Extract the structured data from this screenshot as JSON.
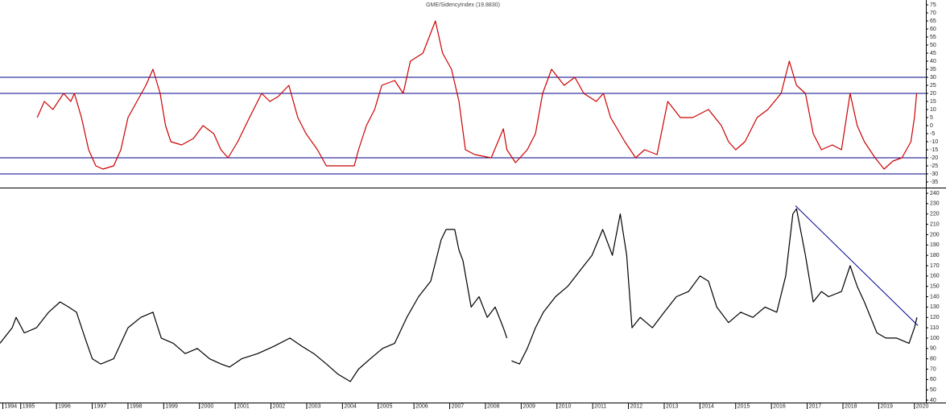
{
  "chart_data": [
    {
      "type": "line",
      "title": "GME/SidencyIndex (19.8830)",
      "xlim": [
        1994.42,
        2020.32
      ],
      "ylim": [
        -38.5,
        78
      ],
      "yticks": [
        75,
        70,
        65,
        60,
        55,
        50,
        45,
        40,
        35,
        30,
        25,
        20,
        15,
        10,
        5,
        0,
        -5,
        -10,
        -15,
        -20,
        -25,
        -30,
        -35
      ],
      "hlines": [
        30,
        20,
        -20,
        -30
      ],
      "hline_color": "#00008b",
      "x": [
        1995.46,
        1995.66,
        1995.9,
        1996.2,
        1996.4,
        1996.5,
        1996.7,
        1996.9,
        1997.1,
        1997.3,
        1997.6,
        1997.8,
        1998.0,
        1998.25,
        1998.5,
        1998.7,
        1998.9,
        1999.05,
        1999.2,
        1999.5,
        1999.83,
        2000.1,
        2000.4,
        2000.6,
        2000.8,
        2001.07,
        2001.4,
        2001.74,
        2001.97,
        2002.2,
        2002.5,
        2002.75,
        2002.98,
        2003.3,
        2003.55,
        2003.9,
        2004.33,
        2004.45,
        2004.67,
        2004.9,
        2005.1,
        2005.46,
        2005.7,
        2005.9,
        2006.25,
        2006.6,
        2006.8,
        2007.05,
        2007.26,
        2007.44,
        2007.7,
        2008.16,
        2008.5,
        2008.6,
        2008.84,
        2009.17,
        2009.4,
        2009.6,
        2009.85,
        2010.2,
        2010.5,
        2010.75,
        2011.1,
        2011.3,
        2011.5,
        2011.9,
        2012.2,
        2012.45,
        2012.8,
        2013.1,
        2013.45,
        2013.8,
        2014.24,
        2014.6,
        2014.8,
        2015.0,
        2015.26,
        2015.6,
        2015.9,
        2016.27,
        2016.5,
        2016.7,
        2016.95,
        2017.17,
        2017.4,
        2017.7,
        2017.96,
        2018.2,
        2018.4,
        2018.6,
        2018.9,
        2019.15,
        2019.4,
        2019.65,
        2019.9,
        2020.0,
        2020.06
      ],
      "series": [
        {
          "name": "GME/SidencyIndex",
          "color": "#cc0000",
          "values": [
            5,
            15,
            10,
            20,
            15,
            20,
            5,
            -15,
            -25,
            -27,
            -25,
            -15,
            5,
            15,
            25,
            35,
            20,
            0,
            -10,
            -12,
            -8,
            0,
            -5,
            -15,
            -20,
            -10,
            5,
            20,
            15,
            18,
            25,
            5,
            -5,
            -15,
            -25,
            -25,
            -25,
            -15,
            0,
            10,
            25,
            28,
            20,
            40,
            45,
            65,
            45,
            35,
            15,
            -15,
            -18,
            -20,
            -2,
            -15,
            -23,
            -15,
            -5,
            20,
            35,
            25,
            30,
            20,
            15,
            20,
            5,
            -10,
            -20,
            -15,
            -18,
            15,
            5,
            5,
            10,
            0,
            -10,
            -15,
            -10,
            5,
            10,
            20,
            40,
            25,
            20,
            -5,
            -15,
            -12,
            -15,
            20,
            0,
            -10,
            -20,
            -27,
            -22,
            -20,
            -10,
            5,
            19.8
          ]
        }
      ]
    },
    {
      "type": "line",
      "xlim": [
        1994.42,
        2020.32
      ],
      "ylim": [
        37.7,
        244.7
      ],
      "yticks": [
        240,
        230,
        220,
        210,
        200,
        190,
        180,
        170,
        160,
        150,
        140,
        130,
        120,
        110,
        100,
        90,
        80,
        70,
        60,
        50,
        40
      ],
      "xticks": [
        {
          "value": 1994.5,
          "label": "1994"
        },
        1995,
        1996,
        1997,
        1998,
        1999,
        2000,
        2001,
        2002,
        2003,
        2004,
        2005,
        2006,
        2007,
        2008,
        2009,
        2010,
        2011,
        2012,
        2013,
        2014,
        2015,
        2016,
        2017,
        2018,
        2019,
        2020
      ],
      "trendline": {
        "color": "#00008b",
        "x": [
          2016.67,
          2020.1
        ],
        "y": [
          228,
          112
        ]
      },
      "x": [
        1994.42,
        1994.76,
        1994.87,
        1995.1,
        1995.44,
        1995.78,
        1996.1,
        1996.34,
        1996.56,
        1996.8,
        1997.0,
        1997.24,
        1997.6,
        1997.8,
        1998.0,
        1998.36,
        1998.7,
        1998.93,
        1999.27,
        1999.6,
        1999.94,
        2000.28,
        2000.6,
        2000.84,
        2001.18,
        2001.63,
        2002.08,
        2002.53,
        2002.87,
        2003.2,
        2003.55,
        2003.88,
        2004.22,
        2004.45,
        2004.78,
        2005.12,
        2005.46,
        2005.8,
        2006.13,
        2006.47,
        2006.76,
        2006.9,
        2007.14,
        2007.26,
        2007.37,
        2007.6,
        2007.82,
        2008.05,
        2008.27,
        2008.5,
        2008.6,
        2008.66,
        2008.73,
        2008.95,
        2009.17,
        2009.4,
        2009.62,
        2009.96,
        2010.3,
        2010.64,
        2010.98,
        2011.28,
        2011.55,
        2011.77,
        2011.95,
        2012.1,
        2012.33,
        2012.67,
        2013.0,
        2013.34,
        2013.68,
        2014.0,
        2014.24,
        2014.47,
        2014.8,
        2015.14,
        2015.48,
        2015.82,
        2016.15,
        2016.4,
        2016.6,
        2016.7,
        2016.95,
        2017.17,
        2017.4,
        2017.6,
        2017.96,
        2018.2,
        2018.4,
        2018.6,
        2018.95,
        2019.2,
        2019.5,
        2019.85,
        2020.0,
        2020.07
      ],
      "series": [
        {
          "name": "GME",
          "color": "#000000",
          "values": [
            95,
            110,
            120,
            105,
            110,
            125,
            135,
            130,
            125,
            100,
            80,
            75,
            80,
            95,
            110,
            120,
            125,
            100,
            95,
            85,
            90,
            80,
            75,
            72,
            80,
            85,
            92,
            100,
            92,
            85,
            75,
            65,
            58,
            70,
            80,
            90,
            95,
            120,
            140,
            155,
            195,
            205,
            205,
            185,
            175,
            130,
            140,
            120,
            130,
            110,
            100,
            null,
            78,
            75,
            90,
            110,
            125,
            140,
            150,
            165,
            180,
            205,
            180,
            220,
            180,
            110,
            120,
            110,
            125,
            140,
            145,
            160,
            155,
            130,
            115,
            125,
            120,
            130,
            125,
            160,
            220,
            225,
            180,
            135,
            145,
            140,
            145,
            170,
            150,
            135,
            105,
            100,
            100,
            95,
            110,
            120
          ]
        }
      ]
    }
  ]
}
